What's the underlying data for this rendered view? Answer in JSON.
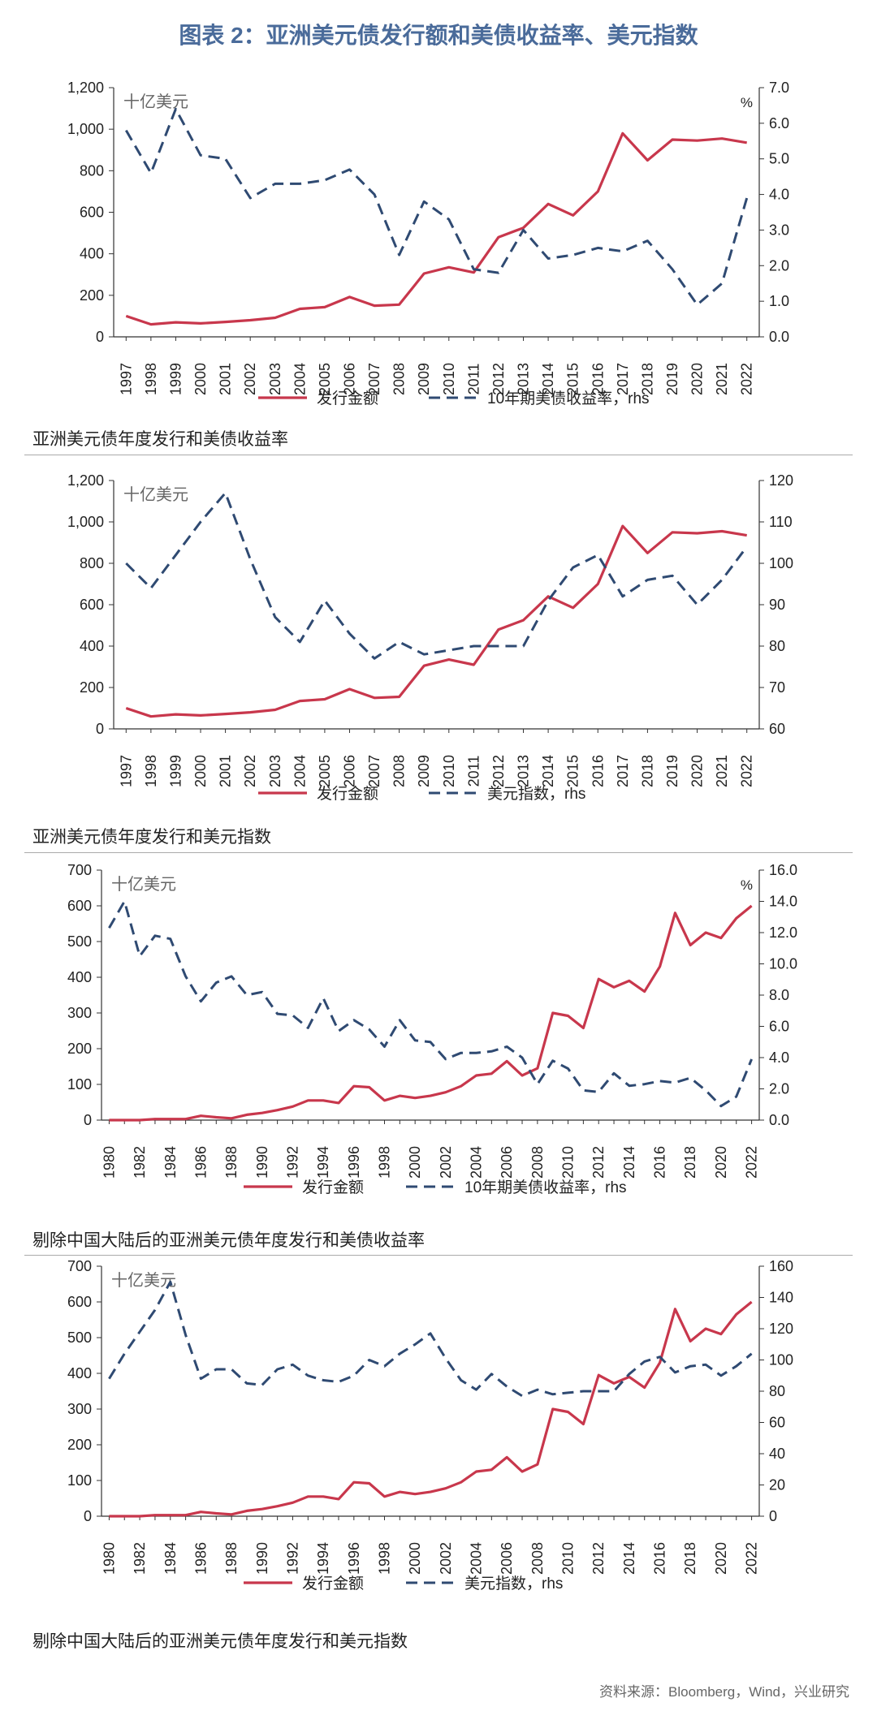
{
  "header": {
    "title": "图表 2：亚洲美元债发行额和美债收益率、美元指数"
  },
  "source": "资料来源：Bloomberg，Wind，兴业研究",
  "colors": {
    "issuance": "#c8374c",
    "rhs": "#2f4a72",
    "title": "#4a6b9a"
  },
  "chart_data": [
    {
      "type": "line",
      "caption": "亚洲美元债年度发行和美债收益率",
      "unit_left": "十亿美元",
      "unit_right": "%",
      "x": [
        "1997",
        "1998",
        "1999",
        "2000",
        "2001",
        "2002",
        "2003",
        "2004",
        "2005",
        "2006",
        "2007",
        "2008",
        "2009",
        "2010",
        "2011",
        "2012",
        "2013",
        "2014",
        "2015",
        "2016",
        "2017",
        "2018",
        "2019",
        "2020",
        "2021",
        "2022"
      ],
      "ylim_left": [
        0,
        1200
      ],
      "yticks_left": [
        "0",
        "200",
        "400",
        "600",
        "800",
        "1,000",
        "1,200"
      ],
      "ylim_right": [
        0,
        7
      ],
      "yticks_right": [
        "0.0",
        "1.0",
        "2.0",
        "3.0",
        "4.0",
        "5.0",
        "6.0",
        "7.0"
      ],
      "series": [
        {
          "name": "发行金额",
          "axis": "left",
          "style": "solid",
          "values": [
            100,
            60,
            70,
            65,
            72,
            80,
            92,
            135,
            143,
            192,
            150,
            155,
            305,
            335,
            310,
            480,
            525,
            640,
            585,
            700,
            980,
            850,
            950,
            945,
            955,
            935
          ]
        },
        {
          "name": "10年期美债收益率，rhs",
          "axis": "right",
          "style": "dashed",
          "values": [
            5.8,
            4.6,
            6.4,
            5.1,
            5.0,
            3.9,
            4.3,
            4.3,
            4.4,
            4.7,
            4.0,
            2.3,
            3.8,
            3.3,
            1.9,
            1.8,
            3.0,
            2.2,
            2.3,
            2.5,
            2.4,
            2.7,
            1.9,
            0.9,
            1.5,
            3.9
          ]
        }
      ]
    },
    {
      "type": "line",
      "caption": "亚洲美元债年度发行和美元指数",
      "unit_left": "十亿美元",
      "unit_right": "",
      "x": [
        "1997",
        "1998",
        "1999",
        "2000",
        "2001",
        "2002",
        "2003",
        "2004",
        "2005",
        "2006",
        "2007",
        "2008",
        "2009",
        "2010",
        "2011",
        "2012",
        "2013",
        "2014",
        "2015",
        "2016",
        "2017",
        "2018",
        "2019",
        "2020",
        "2021",
        "2022"
      ],
      "ylim_left": [
        0,
        1200
      ],
      "yticks_left": [
        "0",
        "200",
        "400",
        "600",
        "800",
        "1,000",
        "1,200"
      ],
      "ylim_right": [
        60,
        120
      ],
      "yticks_right": [
        "60",
        "70",
        "80",
        "90",
        "100",
        "110",
        "120"
      ],
      "series": [
        {
          "name": "发行金额",
          "axis": "left",
          "style": "solid",
          "values": [
            100,
            60,
            70,
            65,
            72,
            80,
            92,
            135,
            143,
            192,
            150,
            155,
            305,
            335,
            310,
            480,
            525,
            640,
            585,
            700,
            980,
            850,
            950,
            945,
            955,
            935
          ]
        },
        {
          "name": "美元指数，rhs",
          "axis": "right",
          "style": "dashed",
          "values": [
            100,
            94,
            102,
            110,
            117,
            101,
            87,
            81,
            91,
            83,
            77,
            81,
            78,
            79,
            80,
            80,
            80,
            91,
            99,
            102,
            92,
            96,
            97,
            90,
            96,
            104
          ]
        }
      ]
    },
    {
      "type": "line",
      "caption": "剔除中国大陆后的亚洲美元债年度发行和美债收益率",
      "unit_left": "十亿美元",
      "unit_right": "%",
      "x": [
        "1980",
        "1981",
        "1982",
        "1983",
        "1984",
        "1985",
        "1986",
        "1987",
        "1988",
        "1989",
        "1990",
        "1991",
        "1992",
        "1993",
        "1994",
        "1995",
        "1996",
        "1997",
        "1998",
        "1999",
        "2000",
        "2001",
        "2002",
        "2003",
        "2004",
        "2005",
        "2006",
        "2007",
        "2008",
        "2009",
        "2010",
        "2011",
        "2012",
        "2013",
        "2014",
        "2015",
        "2016",
        "2017",
        "2018",
        "2019",
        "2020",
        "2021",
        "2022"
      ],
      "xticks": [
        "1980",
        "1982",
        "1984",
        "1986",
        "1988",
        "1990",
        "1992",
        "1994",
        "1996",
        "1998",
        "2000",
        "2002",
        "2004",
        "2006",
        "2008",
        "2010",
        "2012",
        "2014",
        "2016",
        "2018",
        "2020",
        "2022"
      ],
      "ylim_left": [
        0,
        700
      ],
      "yticks_left": [
        "0",
        "100",
        "200",
        "300",
        "400",
        "500",
        "600",
        "700"
      ],
      "ylim_right": [
        0,
        16
      ],
      "yticks_right": [
        "0.0",
        "2.0",
        "4.0",
        "6.0",
        "8.0",
        "10.0",
        "12.0",
        "14.0",
        "16.0"
      ],
      "series": [
        {
          "name": "发行金额",
          "axis": "left",
          "style": "solid",
          "values": [
            0,
            0,
            0,
            3,
            3,
            3,
            12,
            8,
            5,
            15,
            20,
            28,
            38,
            55,
            55,
            48,
            95,
            92,
            55,
            68,
            62,
            68,
            78,
            95,
            125,
            130,
            165,
            125,
            145,
            300,
            292,
            258,
            395,
            372,
            390,
            360,
            430,
            580,
            490,
            525,
            510,
            565,
            600
          ]
        },
        {
          "name": "10年期美债收益率，rhs",
          "axis": "right",
          "style": "dashed",
          "values": [
            12.3,
            14.0,
            10.5,
            11.8,
            11.6,
            9.2,
            7.6,
            8.8,
            9.2,
            8.0,
            8.2,
            6.8,
            6.7,
            5.9,
            7.8,
            5.7,
            6.4,
            5.8,
            4.7,
            6.4,
            5.1,
            5.0,
            3.9,
            4.3,
            4.3,
            4.4,
            4.7,
            4.0,
            2.3,
            3.8,
            3.3,
            1.9,
            1.8,
            3.0,
            2.2,
            2.3,
            2.5,
            2.4,
            2.7,
            1.9,
            0.9,
            1.5,
            3.9
          ]
        }
      ]
    },
    {
      "type": "line",
      "caption": "剔除中国大陆后的亚洲美元债年度发行和美元指数",
      "unit_left": "十亿美元",
      "unit_right": "",
      "x": [
        "1980",
        "1981",
        "1982",
        "1983",
        "1984",
        "1985",
        "1986",
        "1987",
        "1988",
        "1989",
        "1990",
        "1991",
        "1992",
        "1993",
        "1994",
        "1995",
        "1996",
        "1997",
        "1998",
        "1999",
        "2000",
        "2001",
        "2002",
        "2003",
        "2004",
        "2005",
        "2006",
        "2007",
        "2008",
        "2009",
        "2010",
        "2011",
        "2012",
        "2013",
        "2014",
        "2015",
        "2016",
        "2017",
        "2018",
        "2019",
        "2020",
        "2021",
        "2022"
      ],
      "xticks": [
        "1980",
        "1982",
        "1984",
        "1986",
        "1988",
        "1990",
        "1992",
        "1994",
        "1996",
        "1998",
        "2000",
        "2002",
        "2004",
        "2006",
        "2008",
        "2010",
        "2012",
        "2014",
        "2016",
        "2018",
        "2020",
        "2022"
      ],
      "ylim_left": [
        0,
        700
      ],
      "yticks_left": [
        "0",
        "100",
        "200",
        "300",
        "400",
        "500",
        "600",
        "700"
      ],
      "ylim_right": [
        0,
        160
      ],
      "yticks_right": [
        "0",
        "20",
        "40",
        "60",
        "80",
        "100",
        "120",
        "140",
        "160"
      ],
      "series": [
        {
          "name": "发行金额",
          "axis": "left",
          "style": "solid",
          "values": [
            0,
            0,
            0,
            3,
            3,
            3,
            12,
            8,
            5,
            15,
            20,
            28,
            38,
            55,
            55,
            48,
            95,
            92,
            55,
            68,
            62,
            68,
            78,
            95,
            125,
            130,
            165,
            125,
            145,
            300,
            292,
            258,
            395,
            372,
            390,
            360,
            430,
            580,
            490,
            525,
            510,
            565,
            600
          ]
        },
        {
          "name": "美元指数，rhs",
          "axis": "right",
          "style": "dashed",
          "values": [
            88,
            104,
            118,
            132,
            150,
            116,
            88,
            94,
            94,
            85,
            84,
            94,
            97,
            90,
            87,
            86,
            90,
            100,
            96,
            104,
            110,
            117,
            101,
            87,
            81,
            91,
            83,
            77,
            81,
            78,
            79,
            80,
            80,
            80,
            91,
            99,
            102,
            92,
            96,
            97,
            90,
            96,
            104
          ]
        }
      ]
    }
  ]
}
